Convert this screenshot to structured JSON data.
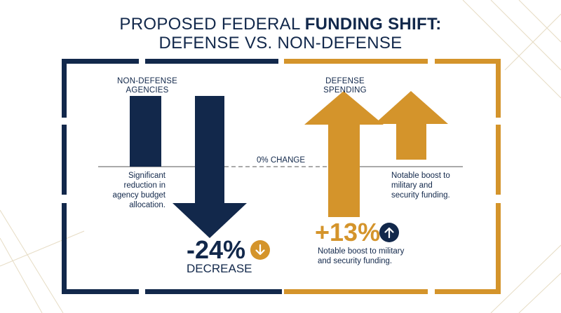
{
  "title_line1_prefix": "PROPOSED FEDERAL ",
  "title_line1_bold": "FUNDING SHIFT:",
  "title_line2": "DEFENSE VS. NON-DEFENSE",
  "colors": {
    "navy": "#12284b",
    "gold": "#d4942b",
    "gray": "#555555"
  },
  "chart_data": {
    "type": "bar",
    "categories": [
      "NON-DEFENSE AGENCIES",
      "DEFENSE SPENDING"
    ],
    "values": [
      -24,
      13
    ],
    "unit": "%",
    "baseline_label": "0% CHANGE",
    "annotations": {
      "non_defense": {
        "value_text": "-24%",
        "direction_text": "DECREASE",
        "note": "Significant reduction in agency budget allocation.",
        "icon": "arrow-down-circle-icon"
      },
      "defense": {
        "value_text": "+13%",
        "note_top": "Notable boost to military and security funding.",
        "note_bottom": "Notable boost to military and security funding.",
        "icon": "arrow-up-circle-icon"
      }
    }
  }
}
